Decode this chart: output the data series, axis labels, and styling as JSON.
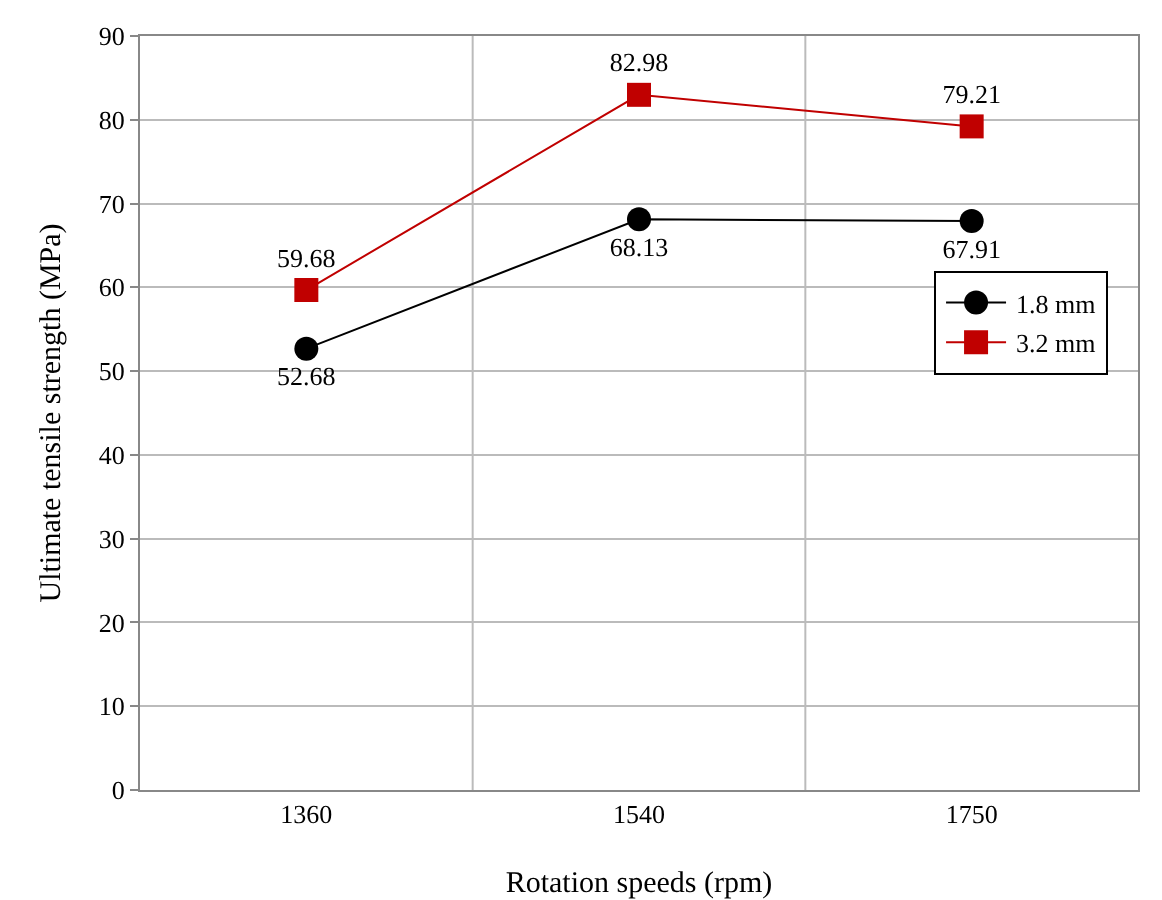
{
  "chart_data": {
    "type": "line",
    "xlabel": "Rotation speeds (rpm)",
    "ylabel": "Ultimate tensile strength (MPa)",
    "categories": [
      "1360",
      "1540",
      "1750"
    ],
    "series": [
      {
        "name": "1.8 mm",
        "color": "#000000",
        "marker": "circle",
        "values": [
          52.68,
          68.13,
          67.91
        ]
      },
      {
        "name": "3.2 mm",
        "color": "#c00000",
        "marker": "square",
        "values": [
          59.68,
          82.98,
          79.21
        ]
      }
    ],
    "ylim": [
      0,
      90
    ],
    "yticks": [
      0,
      10,
      20,
      30,
      40,
      50,
      60,
      70,
      80,
      90
    ],
    "grid": true,
    "legend": "right",
    "data_labels": true,
    "line_style": "solid"
  }
}
